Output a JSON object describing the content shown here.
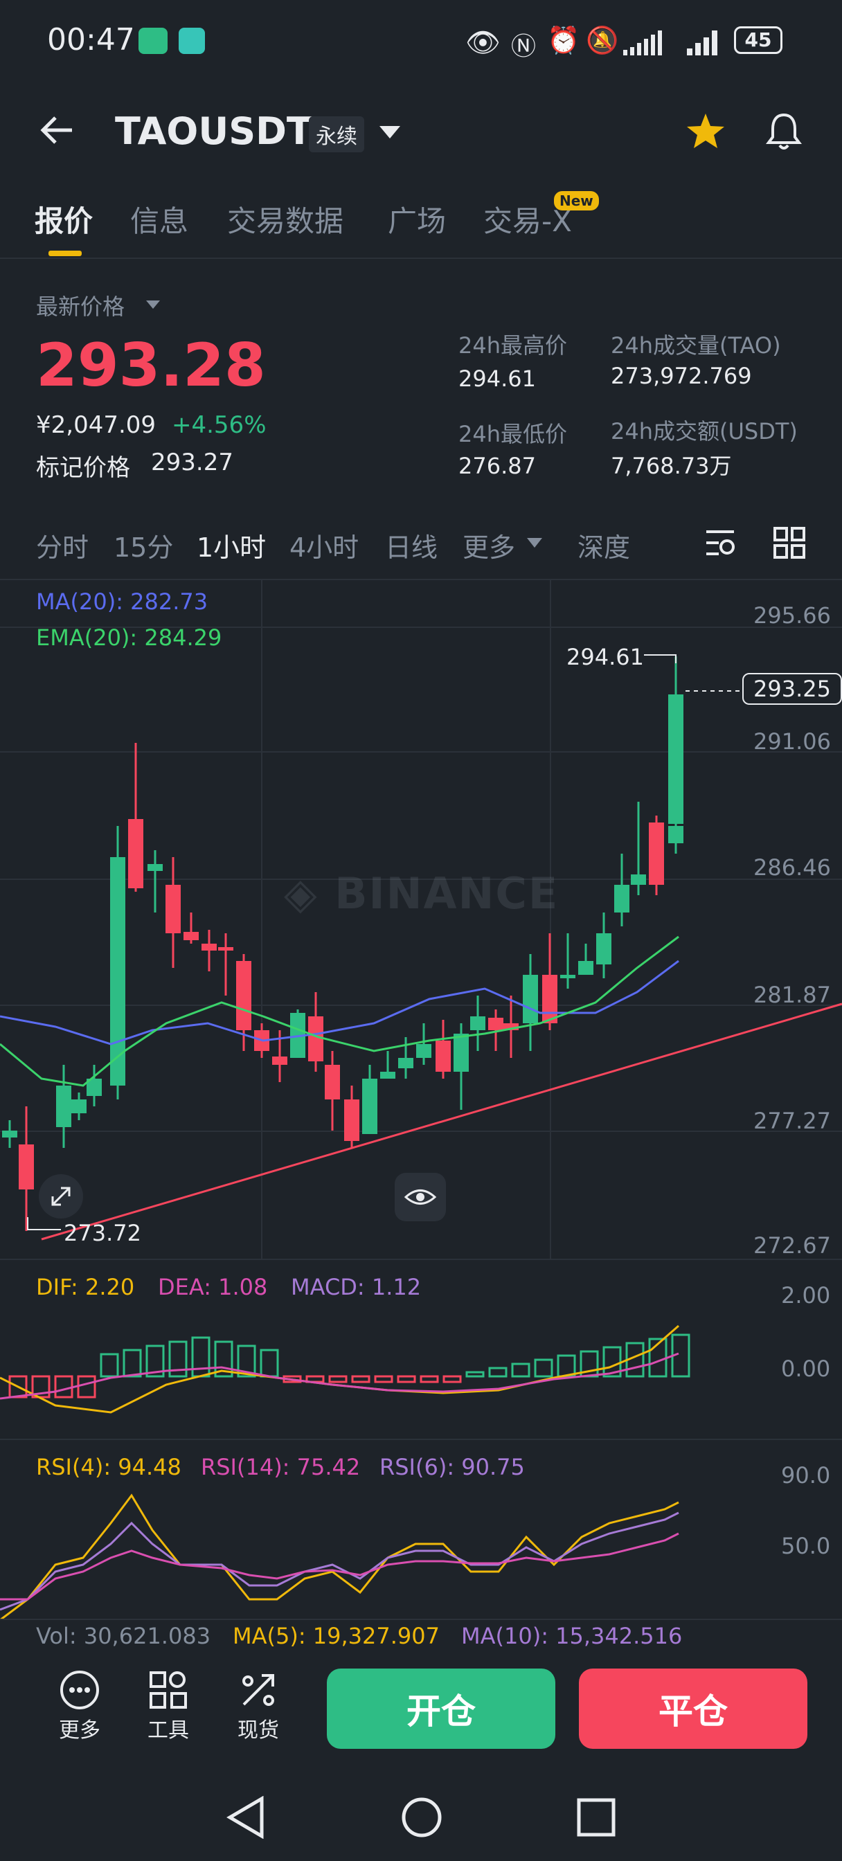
{
  "status_bar": {
    "time": "00:47",
    "battery": "45"
  },
  "header": {
    "symbol": "TAOUSDT",
    "contract_type": "永续",
    "icons": [
      "back-arrow-icon",
      "dropdown-icon",
      "star-icon",
      "bell-icon"
    ]
  },
  "tabs": [
    {
      "label": "报价",
      "active": true
    },
    {
      "label": "信息"
    },
    {
      "label": "交易数据"
    },
    {
      "label": "广场"
    },
    {
      "label": "交易-X",
      "badge": "New"
    }
  ],
  "price": {
    "label": "最新价格",
    "last": "293.28",
    "cny": "¥2,047.09",
    "change": "+4.56%",
    "mark_label": "标记价格",
    "mark": "293.27"
  },
  "stats": {
    "high_label": "24h最高价",
    "high": "294.61",
    "low_label": "24h最低价",
    "low": "276.87",
    "vol_label": "24h成交量(TAO)",
    "vol": "273,972.769",
    "amt_label": "24h成交额(USDT)",
    "amt": "7,768.73万"
  },
  "intervals": [
    "分时",
    "15分",
    "1小时",
    "4小时",
    "日线",
    "更多",
    "深度"
  ],
  "active_interval": "1小时",
  "chart": {
    "ma_label": "MA(20): 282.73",
    "ema_label": "EMA(20): 284.29",
    "y_ticks": [
      "295.66",
      "291.06",
      "286.46",
      "281.87",
      "277.27",
      "272.67"
    ],
    "current_price_tag": "293.25",
    "high_marker": "294.61",
    "low_marker": "273.72",
    "watermark": "BINANCE",
    "macd": {
      "dif": "DIF: 2.20",
      "dea": "DEA: 1.08",
      "macd": "MACD: 1.12",
      "ticks": [
        "2.00",
        "0.00"
      ]
    },
    "rsi": {
      "rsi4": "RSI(4): 94.48",
      "rsi14": "RSI(14): 75.42",
      "rsi6": "RSI(6): 90.75",
      "ticks": [
        "90.0",
        "50.0"
      ]
    },
    "vol": {
      "vol": "Vol: 30,621.083",
      "ma5": "MA(5): 19,327.907",
      "ma10": "MA(10): 15,342.516"
    },
    "colors": {
      "up": "#2ebd85",
      "down": "#f6465d",
      "ma": "#5b6cf0",
      "ema": "#3bd36b",
      "dif": "#f0b90b",
      "dea": "#d94fb0",
      "rsi6": "#a67bd6"
    }
  },
  "bottom_bar": {
    "more": "更多",
    "tools": "工具",
    "spot": "现货",
    "open": "开仓",
    "close": "平仓"
  }
}
